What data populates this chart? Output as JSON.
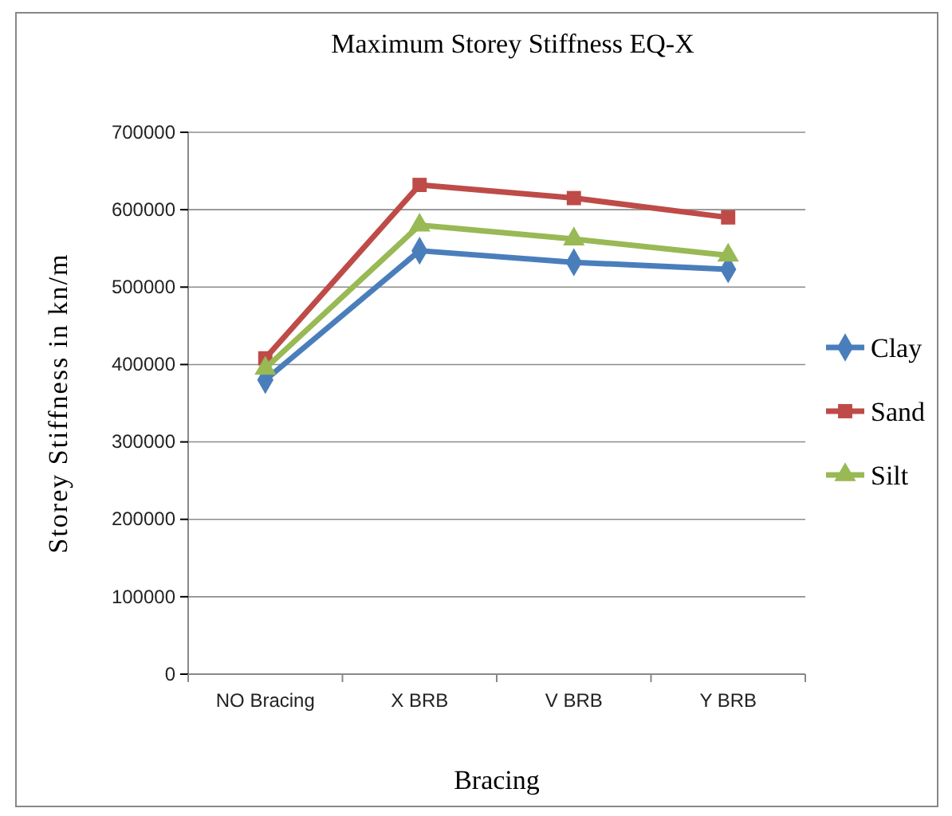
{
  "chart_data": {
    "type": "line",
    "title": "Maximum Storey Stiffness EQ-X",
    "xlabel": "Bracing",
    "ylabel": "Storey Stiffness in kn/m",
    "categories": [
      "NO Bracing",
      "X BRB",
      "V BRB",
      "Y BRB"
    ],
    "series": [
      {
        "name": "Clay",
        "color": "#4a7ebb",
        "marker": "diamond",
        "values": [
          380000,
          547000,
          532000,
          523000
        ]
      },
      {
        "name": "Sand",
        "color": "#be4b48",
        "marker": "square",
        "values": [
          408000,
          632000,
          615000,
          590000
        ]
      },
      {
        "name": "Silt",
        "color": "#98b954",
        "marker": "triangle",
        "values": [
          395000,
          580000,
          562000,
          541000
        ]
      }
    ],
    "ylim": [
      0,
      700000
    ],
    "yticks": [
      0,
      100000,
      200000,
      300000,
      400000,
      500000,
      600000,
      700000
    ],
    "grid": "y",
    "legend": "right"
  }
}
